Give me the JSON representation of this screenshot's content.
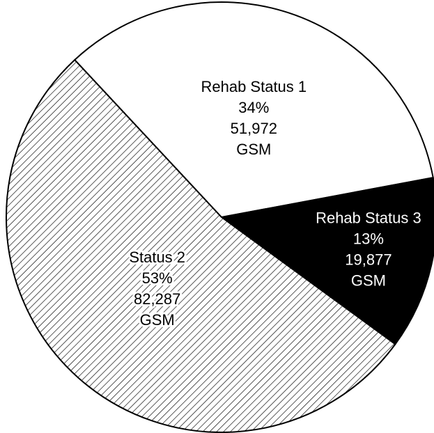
{
  "chart_data": {
    "type": "pie",
    "categories": [
      "Rehab Status 1",
      "Rehab Status 3",
      "Status 2"
    ],
    "values": [
      34,
      13,
      53
    ],
    "value_labels": [
      "34%",
      "13%",
      "53%"
    ],
    "counts": [
      51972,
      19877,
      82287
    ],
    "count_labels": [
      "51,972",
      "19,877",
      "82,287"
    ],
    "unit": "GSM",
    "colors": [
      "#ffffff",
      "#000000",
      "#ffffff"
    ],
    "hatch": [
      false,
      false,
      true
    ]
  }
}
